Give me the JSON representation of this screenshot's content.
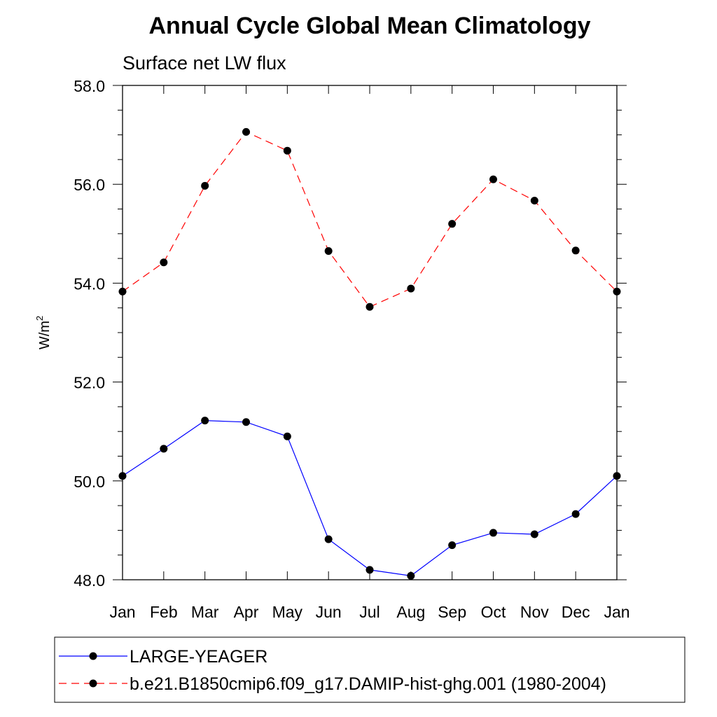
{
  "chart_data": {
    "type": "line",
    "title": "Annual Cycle Global Mean Climatology",
    "subtitle": "Surface net LW flux",
    "ylabel_base": "W/m",
    "ylabel_sup": "2",
    "xlabel": "",
    "categories": [
      "Jan",
      "Feb",
      "Mar",
      "Apr",
      "May",
      "Jun",
      "Jul",
      "Aug",
      "Sep",
      "Oct",
      "Nov",
      "Dec",
      "Jan"
    ],
    "ylim": [
      48.0,
      58.0
    ],
    "yticks": [
      "48.0",
      "50.0",
      "52.0",
      "54.0",
      "56.0",
      "58.0"
    ],
    "series": [
      {
        "name": "LARGE-YEAGER",
        "color": "#0000ff",
        "dash": "solid",
        "values": [
          50.1,
          50.65,
          51.22,
          51.19,
          50.9,
          48.82,
          48.2,
          48.08,
          48.7,
          48.95,
          48.92,
          49.33,
          50.1
        ]
      },
      {
        "name": "b.e21.B1850cmip6.f09_g17.DAMIP-hist-ghg.001 (1980-2004)",
        "color": "#ff0000",
        "dash": "dashed",
        "values": [
          53.83,
          54.42,
          55.97,
          57.06,
          56.68,
          54.65,
          53.52,
          53.89,
          55.2,
          56.1,
          55.67,
          54.66,
          53.83
        ]
      }
    ],
    "grid": false,
    "legend_position": "bottom"
  }
}
